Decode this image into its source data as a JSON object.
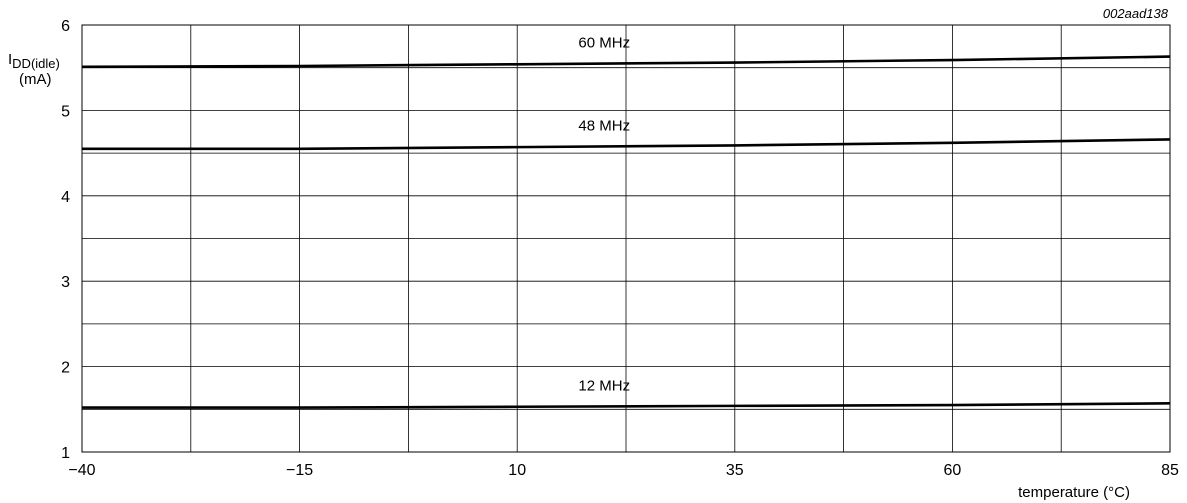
{
  "chart_data": {
    "type": "line",
    "figure_id": "002aad138",
    "title": "",
    "ylabel_main": "I",
    "ylabel_sub": "DD(idle)",
    "ylabel_unit": "(mA)",
    "xlabel": "temperature (°C)",
    "xlim": [
      -40,
      85
    ],
    "ylim": [
      1,
      6
    ],
    "x_ticks": [
      -40,
      -15,
      10,
      35,
      60,
      85
    ],
    "x_tick_labels": [
      "−40",
      "−15",
      "10",
      "35",
      "60",
      "85"
    ],
    "y_ticks": [
      1,
      2,
      3,
      4,
      5,
      6
    ],
    "y_tick_labels": [
      "1",
      "2",
      "3",
      "4",
      "5",
      "6"
    ],
    "x_grid_step": 12.5,
    "y_grid_step": 0.5,
    "grid": true,
    "series": [
      {
        "name": "60 MHz",
        "x": [
          -40,
          -15,
          10,
          35,
          60,
          85
        ],
        "y": [
          5.51,
          5.52,
          5.54,
          5.56,
          5.59,
          5.63
        ]
      },
      {
        "name": "48 MHz",
        "x": [
          -40,
          -15,
          10,
          35,
          60,
          85
        ],
        "y": [
          4.55,
          4.55,
          4.57,
          4.59,
          4.62,
          4.66
        ]
      },
      {
        "name": "12 MHz",
        "x": [
          -40,
          -15,
          10,
          35,
          60,
          85
        ],
        "y": [
          1.52,
          1.52,
          1.53,
          1.54,
          1.55,
          1.57
        ]
      }
    ],
    "series_label_x": 20
  }
}
